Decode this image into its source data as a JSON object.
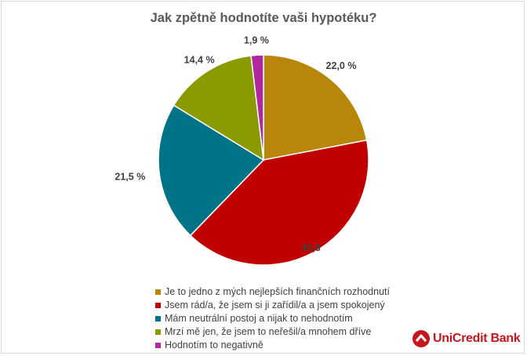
{
  "chart_data": {
    "type": "pie",
    "title": "Jak zpětně hodnotíte vaši hypotéku?",
    "slices": [
      {
        "label": "Je to jedno z mých nejlepších finančních rozhodnutí",
        "value": 22.0,
        "value_label": "22,0 %",
        "color": "#b8860b"
      },
      {
        "label": "Jsem rád/a, že jsem si ji zařídil/a a jsem spokojený",
        "value": 40.3,
        "value_label": "40,3",
        "color": "#c00000"
      },
      {
        "label": "Mám neutrální postoj a nijak to nehodnotím",
        "value": 21.5,
        "value_label": "21,5 %",
        "color": "#007486"
      },
      {
        "label": "Mrzí mě jen, že jsem to neřešil/a mnohem dříve",
        "value": 14.4,
        "value_label": "14,4 %",
        "color": "#8a9a00"
      },
      {
        "label": "Hodnotím to negativně",
        "value": 1.9,
        "value_label": "1,9 %",
        "color": "#b0289e"
      }
    ],
    "start_angle": "12 o'clock",
    "direction": "clockwise",
    "legend_position": "bottom"
  },
  "brand": {
    "name": "UniCredit Bank",
    "color": "#c4161c",
    "icon": "unicredit-logo-icon"
  }
}
